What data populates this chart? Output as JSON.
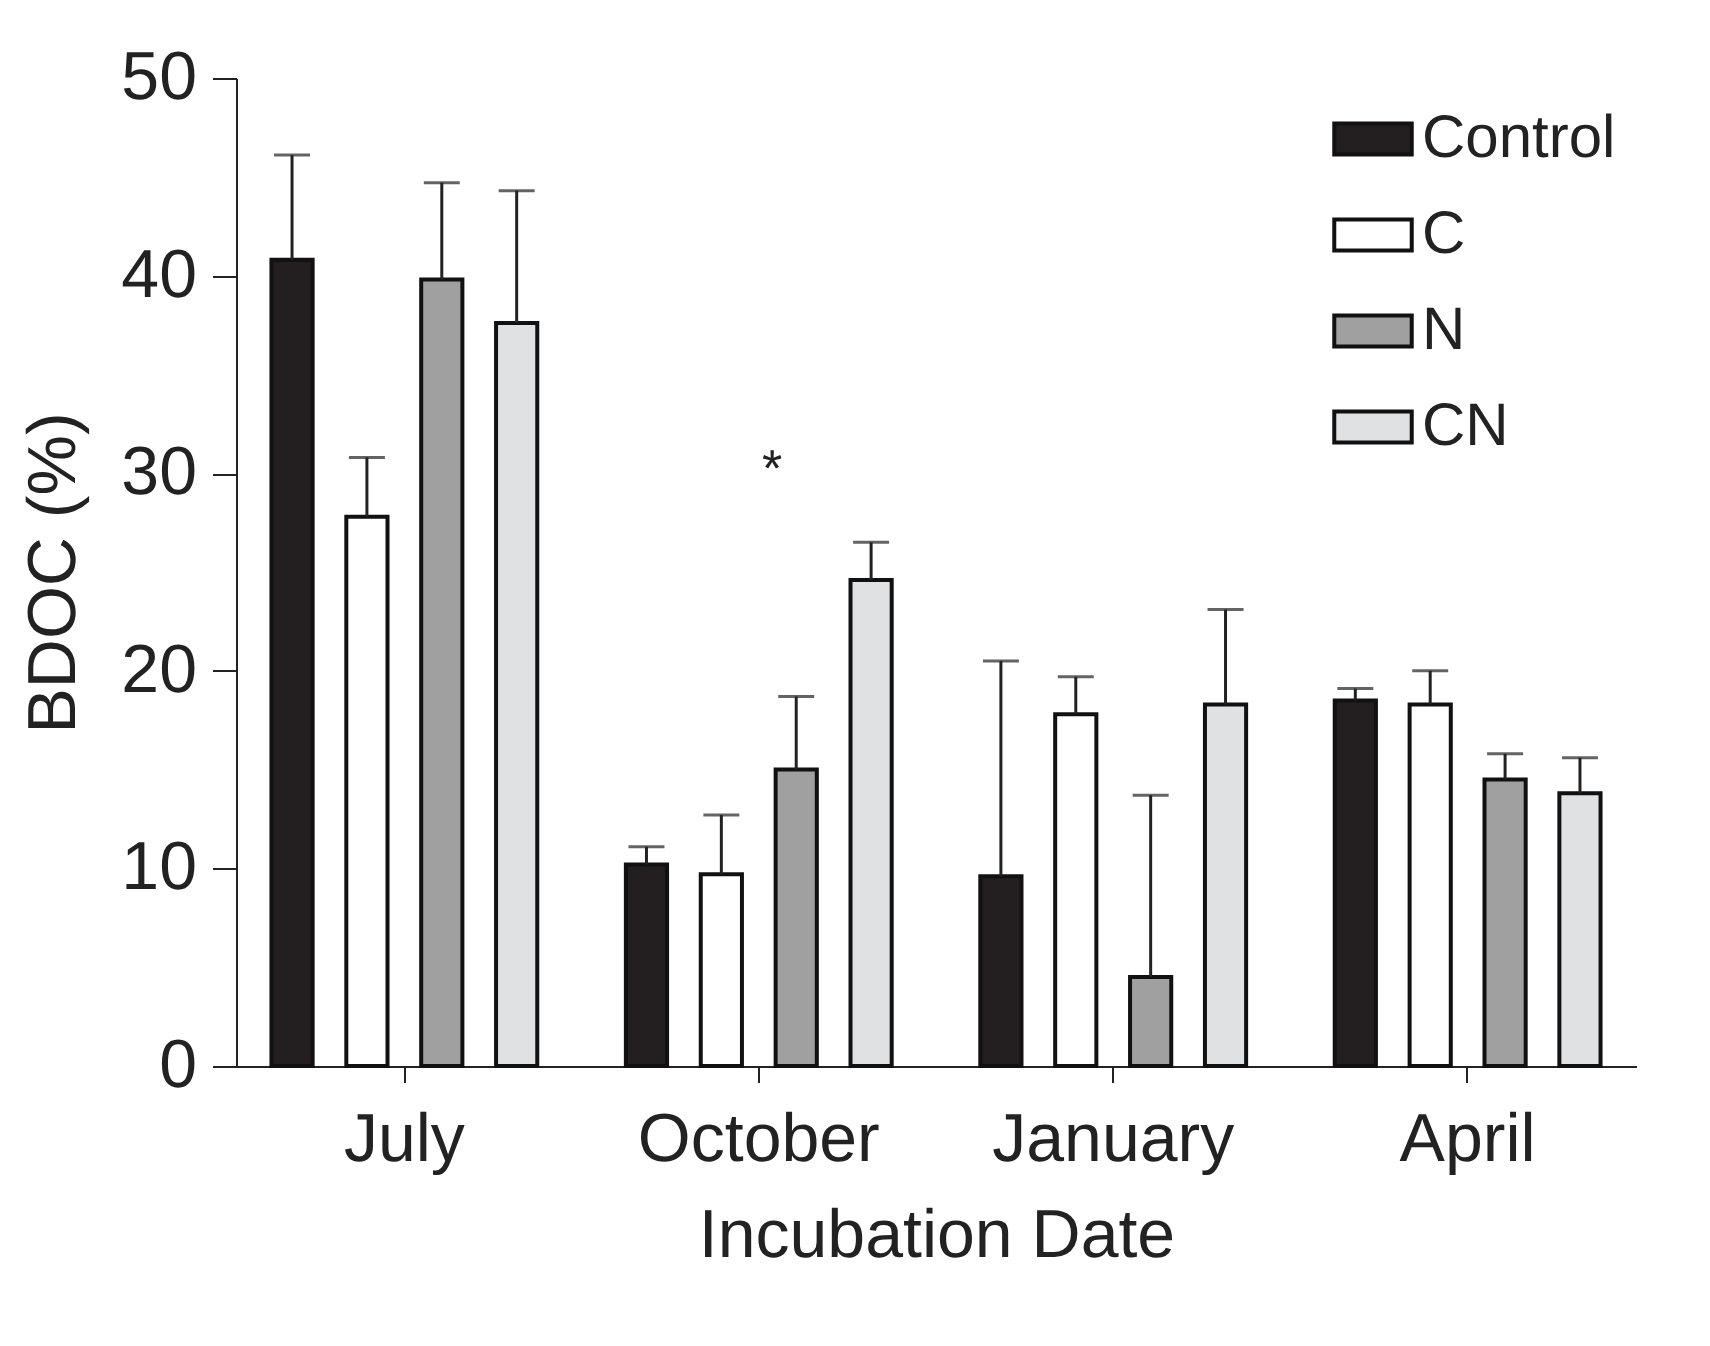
{
  "chart_data": {
    "type": "bar",
    "xlabel": "Incubation Date",
    "ylabel": "BDOC (%)",
    "categories": [
      "July",
      "October",
      "January",
      "April"
    ],
    "ylim": [
      0,
      50
    ],
    "yticks": [
      0,
      10,
      20,
      30,
      40,
      50
    ],
    "legend": "top right",
    "series": [
      {
        "name": "Control",
        "color": "#231f20",
        "values": [
          40.8,
          10.2,
          9.6,
          18.5
        ],
        "errors": [
          [
            40.8,
            46.1
          ],
          [
            10.2,
            11.1
          ],
          [
            9.6,
            20.5
          ],
          [
            18.5,
            19.1
          ]
        ]
      },
      {
        "name": "C",
        "color": "#ffffff",
        "values": [
          27.8,
          9.7,
          17.8,
          18.3
        ],
        "errors": [
          [
            27.8,
            30.8
          ],
          [
            9.7,
            12.7
          ],
          [
            17.8,
            19.7
          ],
          [
            18.3,
            20.0
          ]
        ]
      },
      {
        "name": "N",
        "color": "#a0a0a0",
        "values": [
          39.8,
          15.0,
          4.5,
          14.5
        ],
        "errors": [
          [
            39.8,
            44.7
          ],
          [
            15.0,
            18.7
          ],
          [
            4.5,
            13.7
          ],
          [
            14.5,
            15.8
          ]
        ]
      },
      {
        "name": "CN",
        "color": "#e0e1e3",
        "values": [
          37.6,
          24.6,
          18.3,
          13.8
        ],
        "errors": [
          [
            37.6,
            44.3
          ],
          [
            24.6,
            26.5
          ],
          [
            18.3,
            23.1
          ],
          [
            13.8,
            15.6
          ]
        ]
      }
    ],
    "annotations": [
      "*"
    ]
  }
}
